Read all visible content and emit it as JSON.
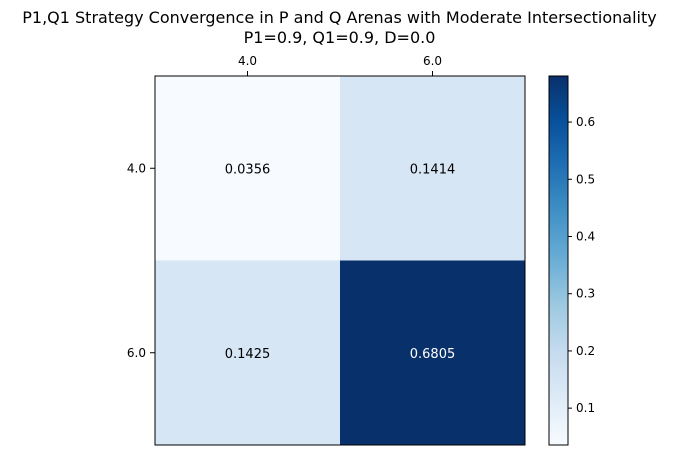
{
  "chart_data": {
    "type": "heatmap",
    "title": "P1,Q1 Strategy Convergence in P and Q Arenas with Moderate Intersectionality",
    "subtitle": "P1=0.9, Q1=0.9, D=0.0",
    "x_categories": [
      "4.0",
      "6.0"
    ],
    "y_categories": [
      "4.0",
      "6.0"
    ],
    "values": [
      [
        0.0356,
        0.1414
      ],
      [
        0.1425,
        0.6805
      ]
    ],
    "cell_labels": [
      [
        "0.0356",
        "0.1414"
      ],
      [
        "0.1425",
        "0.6805"
      ]
    ],
    "colormap": "Blues",
    "color_range": [
      0.0356,
      0.6805
    ],
    "colorbar_ticks": [
      "0.1",
      "0.2",
      "0.3",
      "0.4",
      "0.5",
      "0.6"
    ],
    "xaxis_position": "top",
    "grid": false
  },
  "colors": {
    "low": "#f7fbff",
    "high": "#08306b",
    "text_dark": "#000000",
    "text_light": "#ffffff"
  }
}
